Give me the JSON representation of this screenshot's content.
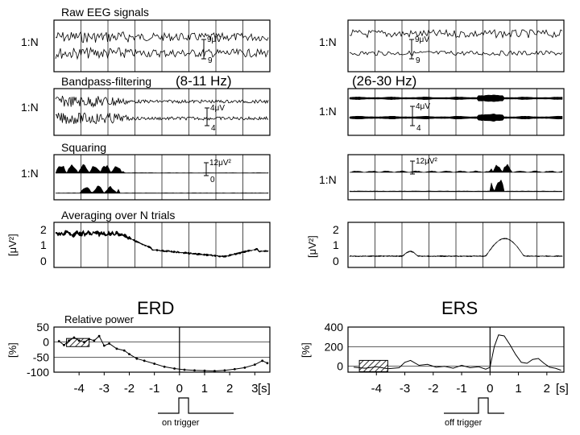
{
  "raw": {
    "title": "Raw EEG signals",
    "scale_left_top": "9μV",
    "scale_left_bottom": "9",
    "scale_right_top": "9μV",
    "scale_right_bottom": "9"
  },
  "bandpass": {
    "title": "Bandpass-filtering",
    "band_left": "(8-11 Hz)",
    "band_right": "(26-30 Hz)",
    "scale_left_top": "4μV",
    "scale_left_bottom": "4",
    "scale_right_top": "4μV",
    "scale_right_bottom": "4"
  },
  "squaring": {
    "title": "Squaring",
    "scale_left_top": "12μV²",
    "scale_left_bottom": "0",
    "scale_right_top": "12μV²",
    "scale_right_bottom": "0"
  },
  "averaging": {
    "title": "Averaging over N trials",
    "ylabel": "[μV²]",
    "left_ticks": [
      "2",
      "1",
      "0"
    ],
    "right_ticks": [
      "2",
      "1",
      "0"
    ]
  },
  "row_label": "1:N",
  "erd": {
    "title": "ERD",
    "subtitle": "Relative power",
    "ylabel": "[%]",
    "yticks": [
      "50",
      "0",
      "-50",
      "-100"
    ],
    "xticks": [
      "-4",
      "-3",
      "-2",
      "-1",
      "0",
      "1",
      "2",
      "3"
    ],
    "xunit": "[s]",
    "trigger": "on trigger"
  },
  "ers": {
    "title": "ERS",
    "ylabel": "[%]",
    "yticks": [
      "400",
      "200",
      "0"
    ],
    "xticks": [
      "-4",
      "-3",
      "-2",
      "-1",
      "0",
      "1",
      "2"
    ],
    "xunit": "[s]",
    "trigger": "off trigger"
  },
  "chart_data": [
    {
      "type": "line",
      "title": "ERD",
      "xlabel": "[s]",
      "ylabel": "[%]",
      "xlim": [
        -5,
        3.6
      ],
      "ylim": [
        -100,
        50
      ],
      "x": [
        -4.8,
        -4.6,
        -4.4,
        -4.2,
        -4.0,
        -3.8,
        -3.6,
        -3.4,
        -3.2,
        -3.0,
        -2.8,
        -2.5,
        -2.2,
        -2.0,
        -1.7,
        -1.4,
        -1.0,
        -0.6,
        -0.2,
        0.2,
        0.6,
        1.0,
        1.4,
        1.8,
        2.2,
        2.6,
        3.0,
        3.3,
        3.5
      ],
      "y": [
        3,
        -10,
        5,
        15,
        5,
        0,
        10,
        5,
        20,
        -12,
        -5,
        -22,
        -28,
        -40,
        -55,
        -62,
        -72,
        -82,
        -88,
        -92,
        -94,
        -95,
        -96,
        -94,
        -90,
        -85,
        -75,
        -62,
        -70
      ]
    },
    {
      "type": "line",
      "title": "ERS",
      "xlabel": "[s]",
      "ylabel": "[%]",
      "xlim": [
        -5,
        2.6
      ],
      "ylim": [
        -60,
        400
      ],
      "x": [
        -4.8,
        -4.4,
        -4.0,
        -3.6,
        -3.2,
        -3.0,
        -2.8,
        -2.5,
        -2.2,
        -1.9,
        -1.6,
        -1.3,
        -1.0,
        -0.7,
        -0.4,
        -0.15,
        0.0,
        0.15,
        0.3,
        0.5,
        0.7,
        0.9,
        1.1,
        1.3,
        1.5,
        1.7,
        1.9,
        2.1,
        2.3,
        2.5
      ],
      "y": [
        -10,
        -20,
        -5,
        -25,
        -15,
        40,
        60,
        10,
        20,
        -10,
        0,
        -20,
        10,
        -15,
        -5,
        -30,
        -10,
        200,
        320,
        310,
        220,
        120,
        40,
        30,
        70,
        80,
        30,
        -10,
        -20,
        -40
      ]
    }
  ]
}
